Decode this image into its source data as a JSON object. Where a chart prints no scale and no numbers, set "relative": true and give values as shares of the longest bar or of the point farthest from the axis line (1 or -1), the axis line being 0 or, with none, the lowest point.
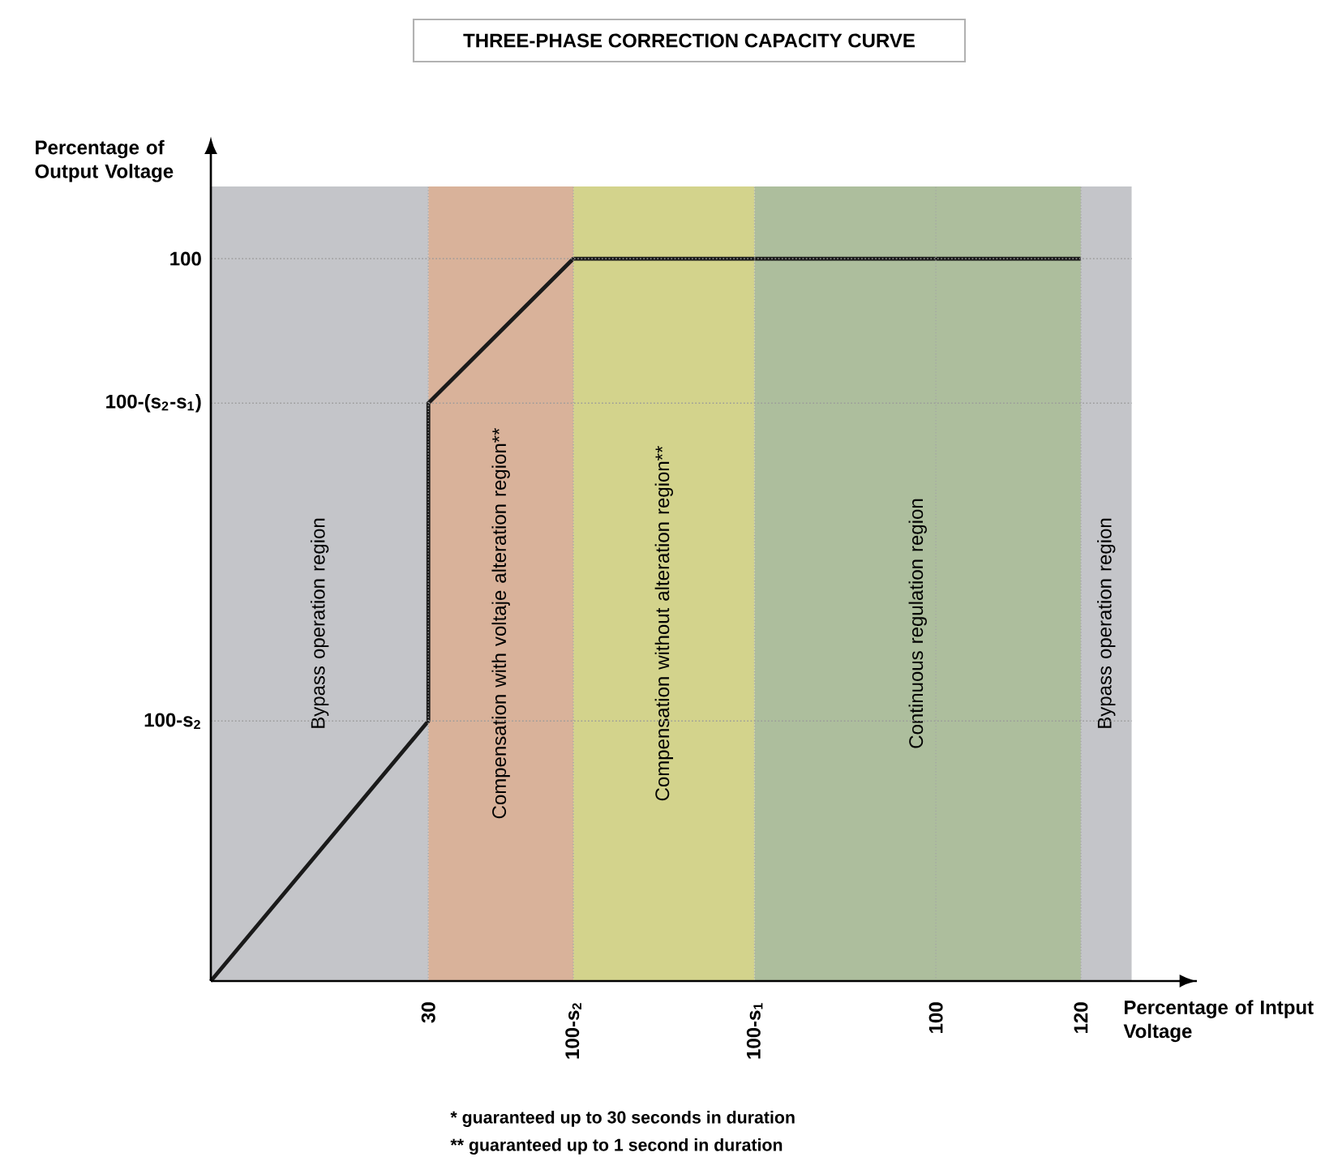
{
  "chart_data": {
    "type": "line",
    "title": "THREE-PHASE CORRECTION CAPACITY CURVE",
    "xlabel": "Percentage of Intput Voltage",
    "ylabel": "Percentage of Output Voltage",
    "x": [
      0,
      30,
      30,
      50,
      120
    ],
    "series": [
      {
        "color": "#1a1a1a",
        "values": [
          0,
          0.36,
          0.8,
          1,
          1
        ]
      }
    ],
    "relative": true,
    "xlim": [
      0,
      136
    ],
    "xticks": [
      30,
      {
        "value": 50,
        "label": "100-s$_{2}$"
      },
      {
        "value": 75,
        "label": "100-s$_{1}$"
      },
      100,
      120
    ],
    "bands": [
      {
        "axis": "x",
        "from": 0,
        "to": 30,
        "label": "Bypass operation region",
        "color": "#c4c5c9"
      },
      {
        "axis": "x",
        "from": 30,
        "to": 50,
        "label": "Compensation with voltaje alteration region**",
        "color": "#d9b29a"
      },
      {
        "axis": "x",
        "from": 50,
        "to": 75,
        "label": "Compensation without alteration region**",
        "color": "#d3d38c"
      },
      {
        "axis": "x",
        "from": 75,
        "to": 120,
        "label": "Continuous regulation region",
        "color": "#adbe9d"
      },
      {
        "axis": "x",
        "from": 120,
        "to": 127,
        "label": "Bypass operation region",
        "color": "#c4c5c9"
      }
    ],
    "ref_lines": [
      {
        "axis": "y",
        "value": 0.36,
        "label": "100-s$_{2}$",
        "line_style": "dotted",
        "color": "#9a9a9a"
      },
      {
        "axis": "y",
        "value": 0.8,
        "label": "100-(s$_{2}$-s$_{1}$)",
        "line_style": "dotted",
        "color": "#9a9a9a"
      },
      {
        "axis": "y",
        "value": 1,
        "label": "100",
        "line_style": "dotted",
        "color": "#9a9a9a"
      }
    ],
    "annotations": [
      "* guaranteed up to 30 seconds in duration",
      "** guaranteed up to 1 second in duration"
    ],
    "grid": "x",
    "marker": "none",
    "line_style": "solid"
  }
}
